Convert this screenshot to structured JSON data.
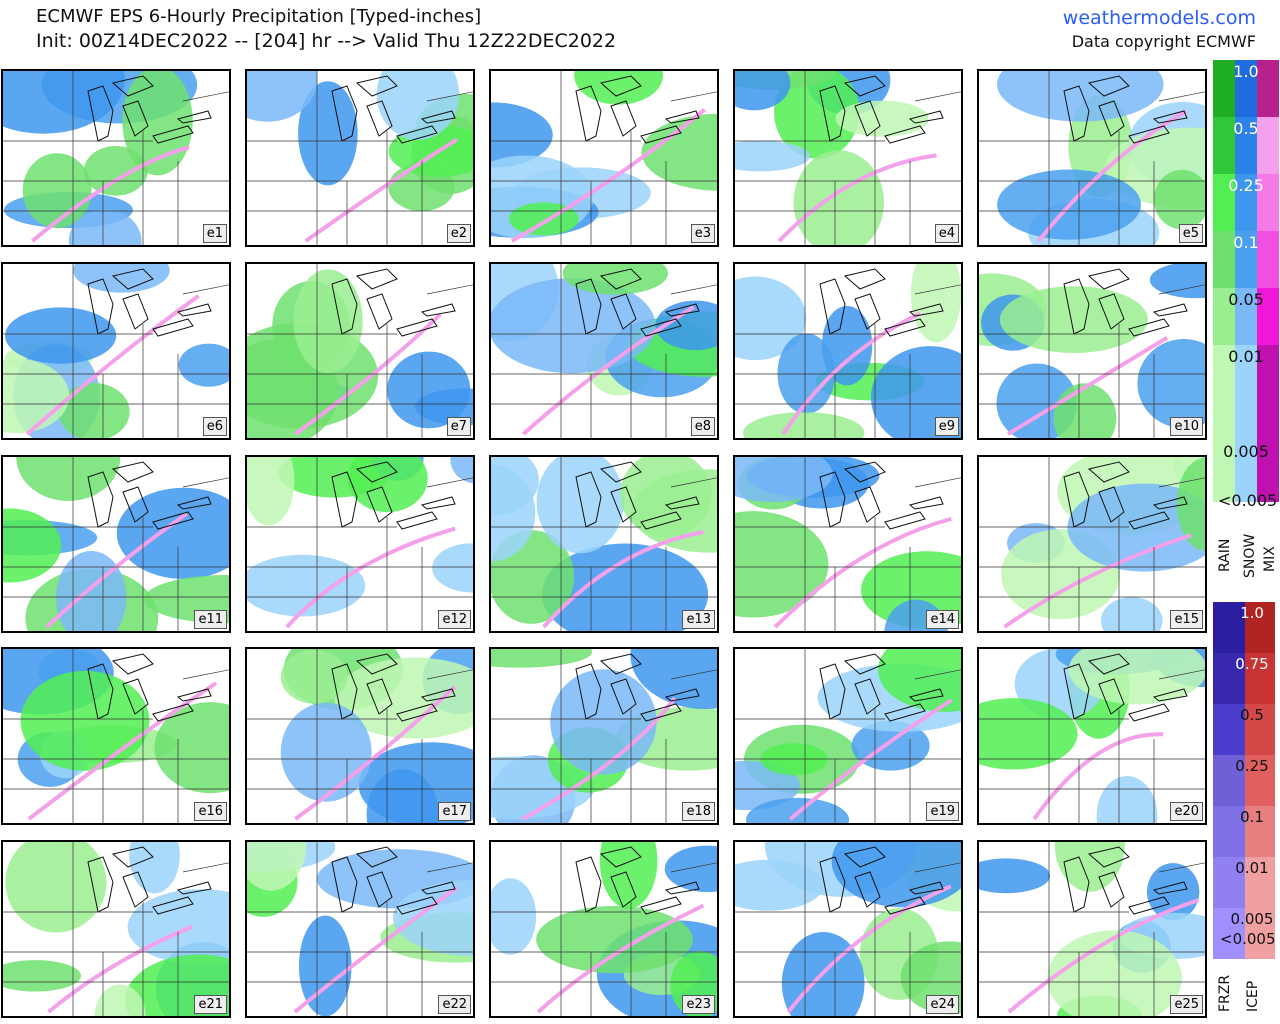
{
  "header": {
    "title": "ECMWF EPS 6-Hourly Precipitation [Typed-inches]",
    "subtitle": "Init: 00Z14DEC2022 -- [204] hr --> Valid Thu 12Z22DEC2022",
    "site": "weathermodels.com",
    "copyright": "Data copyright ECMWF"
  },
  "panels": [
    {
      "label": "e1",
      "type": "snow"
    },
    {
      "label": "e2",
      "type": "rain"
    },
    {
      "label": "e3",
      "type": "snow"
    },
    {
      "label": "e4",
      "type": "rain"
    },
    {
      "label": "e5",
      "type": "snow"
    },
    {
      "label": "e6",
      "type": "snow"
    },
    {
      "label": "e7",
      "type": "rain"
    },
    {
      "label": "e8",
      "type": "snow"
    },
    {
      "label": "e9",
      "type": "snow"
    },
    {
      "label": "e10",
      "type": "snow"
    },
    {
      "label": "e11",
      "type": "rain"
    },
    {
      "label": "e12",
      "type": "snow"
    },
    {
      "label": "e13",
      "type": "snow"
    },
    {
      "label": "e14",
      "type": "snow"
    },
    {
      "label": "e15",
      "type": "rain"
    },
    {
      "label": "e16",
      "type": "snow"
    },
    {
      "label": "e17",
      "type": "snow"
    },
    {
      "label": "e18",
      "type": "snow"
    },
    {
      "label": "e19",
      "type": "snow"
    },
    {
      "label": "e20",
      "type": "snow"
    },
    {
      "label": "e21",
      "type": "rain"
    },
    {
      "label": "e22",
      "type": "snow"
    },
    {
      "label": "e23",
      "type": "rain"
    },
    {
      "label": "e24",
      "type": "snow"
    },
    {
      "label": "e25",
      "type": "snow"
    }
  ],
  "legend_top": {
    "levels": [
      "1.0",
      "0.5",
      "0.25",
      "0.1",
      "0.05",
      "0.01",
      "0.005"
    ],
    "below": "<0.005",
    "types": [
      "RAIN",
      "SNOW",
      "MIX"
    ],
    "rain_colors": [
      "#1fae22",
      "#30c83a",
      "#52ee52",
      "#6ee06e",
      "#9aee90",
      "#bff7b4",
      "#bff7b4"
    ],
    "snow_colors": [
      "#1f6be0",
      "#2c82e8",
      "#3e96ee",
      "#4aa0ee",
      "#7ab8f8",
      "#9bd4fa",
      "#9bd4fa"
    ],
    "mix_colors": [
      "#b8208e",
      "#f5a0ea",
      "#f57ae8",
      "#f250e0",
      "#f016da",
      "#c010b0",
      "#c010b0"
    ]
  },
  "legend_bottom": {
    "levels": [
      "1.0",
      "0.75",
      "0.5",
      "0.25",
      "0.1",
      "0.01",
      "0.005"
    ],
    "below": "<0.005",
    "types": [
      "FRZR",
      "ICEP"
    ],
    "frzr_colors": [
      "#2c1ea0",
      "#3828b0",
      "#4a3ccc",
      "#7060d8",
      "#8070e6",
      "#9080f0",
      "#a090ff"
    ],
    "icep_colors": [
      "#b02424",
      "#c83434",
      "#d44848",
      "#e06060",
      "#e68080",
      "#f0a0a0",
      "#f0a0a0"
    ]
  }
}
